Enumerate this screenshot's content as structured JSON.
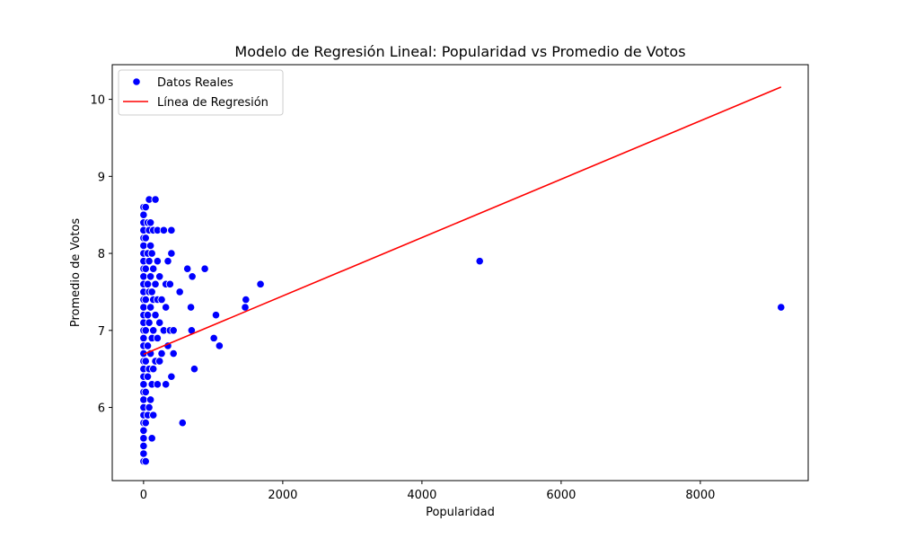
{
  "chart_data": {
    "type": "scatter",
    "title": "Modelo de Regresión Lineal: Popularidad vs Promedio de Votos",
    "xlabel": "Popularidad",
    "ylabel": "Promedio de Votos",
    "xlim": [
      -450,
      9550
    ],
    "ylim": [
      5.05,
      10.45
    ],
    "xticks": [
      0,
      2000,
      4000,
      6000,
      8000
    ],
    "yticks": [
      6,
      7,
      8,
      9,
      10
    ],
    "grid": false,
    "legend_position": "top-left",
    "colors": {
      "points": "#0000ff",
      "regression": "#ff0000",
      "point_edge": "#ffffff"
    },
    "series": [
      {
        "name": "Datos Reales",
        "kind": "scatter",
        "points": [
          [
            0,
            5.3
          ],
          [
            0,
            5.4
          ],
          [
            0,
            5.5
          ],
          [
            0,
            5.6
          ],
          [
            0,
            5.7
          ],
          [
            0,
            5.8
          ],
          [
            0,
            5.9
          ],
          [
            0,
            6.0
          ],
          [
            0,
            6.1
          ],
          [
            0,
            6.2
          ],
          [
            0,
            6.3
          ],
          [
            0,
            6.4
          ],
          [
            0,
            6.5
          ],
          [
            0,
            6.6
          ],
          [
            0,
            6.7
          ],
          [
            0,
            6.8
          ],
          [
            0,
            6.9
          ],
          [
            0,
            7.0
          ],
          [
            0,
            7.1
          ],
          [
            0,
            7.2
          ],
          [
            0,
            7.3
          ],
          [
            0,
            7.4
          ],
          [
            0,
            7.5
          ],
          [
            0,
            7.6
          ],
          [
            0,
            7.7
          ],
          [
            0,
            7.8
          ],
          [
            0,
            7.9
          ],
          [
            0,
            8.0
          ],
          [
            0,
            8.1
          ],
          [
            0,
            8.2
          ],
          [
            0,
            8.3
          ],
          [
            0,
            8.4
          ],
          [
            0,
            8.5
          ],
          [
            0,
            8.6
          ],
          [
            30,
            5.3
          ],
          [
            30,
            5.8
          ],
          [
            30,
            6.2
          ],
          [
            30,
            6.6
          ],
          [
            30,
            7.0
          ],
          [
            30,
            7.4
          ],
          [
            30,
            7.8
          ],
          [
            30,
            8.2
          ],
          [
            30,
            8.6
          ],
          [
            60,
            5.9
          ],
          [
            60,
            6.4
          ],
          [
            60,
            6.8
          ],
          [
            60,
            7.2
          ],
          [
            60,
            7.6
          ],
          [
            60,
            8.0
          ],
          [
            60,
            8.4
          ],
          [
            80,
            6.0
          ],
          [
            80,
            6.5
          ],
          [
            80,
            7.1
          ],
          [
            80,
            7.5
          ],
          [
            80,
            7.9
          ],
          [
            80,
            8.3
          ],
          [
            80,
            8.7
          ],
          [
            100,
            6.1
          ],
          [
            100,
            6.7
          ],
          [
            100,
            7.3
          ],
          [
            100,
            7.7
          ],
          [
            100,
            8.1
          ],
          [
            100,
            8.4
          ],
          [
            120,
            5.6
          ],
          [
            120,
            6.3
          ],
          [
            120,
            6.9
          ],
          [
            120,
            7.5
          ],
          [
            120,
            8.0
          ],
          [
            140,
            5.9
          ],
          [
            140,
            6.5
          ],
          [
            140,
            7.0
          ],
          [
            140,
            7.4
          ],
          [
            140,
            7.8
          ],
          [
            140,
            8.3
          ],
          [
            170,
            6.6
          ],
          [
            170,
            7.2
          ],
          [
            170,
            7.6
          ],
          [
            170,
            8.7
          ],
          [
            200,
            6.3
          ],
          [
            200,
            6.9
          ],
          [
            200,
            7.4
          ],
          [
            200,
            7.9
          ],
          [
            200,
            8.3
          ],
          [
            230,
            6.6
          ],
          [
            230,
            7.1
          ],
          [
            230,
            7.7
          ],
          [
            260,
            6.7
          ],
          [
            260,
            7.4
          ],
          [
            290,
            7.0
          ],
          [
            290,
            8.3
          ],
          [
            320,
            6.3
          ],
          [
            320,
            7.3
          ],
          [
            320,
            7.6
          ],
          [
            350,
            6.8
          ],
          [
            350,
            7.9
          ],
          [
            380,
            7.0
          ],
          [
            380,
            7.6
          ],
          [
            400,
            6.4
          ],
          [
            400,
            8.0
          ],
          [
            400,
            8.3
          ],
          [
            430,
            6.7
          ],
          [
            430,
            7.0
          ],
          [
            520,
            7.5
          ],
          [
            560,
            5.8
          ],
          [
            630,
            7.8
          ],
          [
            680,
            7.3
          ],
          [
            690,
            7.0
          ],
          [
            700,
            7.7
          ],
          [
            730,
            6.5
          ],
          [
            880,
            7.8
          ],
          [
            1010,
            6.9
          ],
          [
            1040,
            7.2
          ],
          [
            1090,
            6.8
          ],
          [
            1460,
            7.3
          ],
          [
            1470,
            7.4
          ],
          [
            1680,
            7.6
          ],
          [
            4830,
            7.9
          ],
          [
            9160,
            7.3
          ]
        ]
      },
      {
        "name": "Línea de Regresión",
        "kind": "line",
        "points": [
          [
            0,
            6.69
          ],
          [
            9160,
            10.16
          ]
        ]
      }
    ]
  }
}
